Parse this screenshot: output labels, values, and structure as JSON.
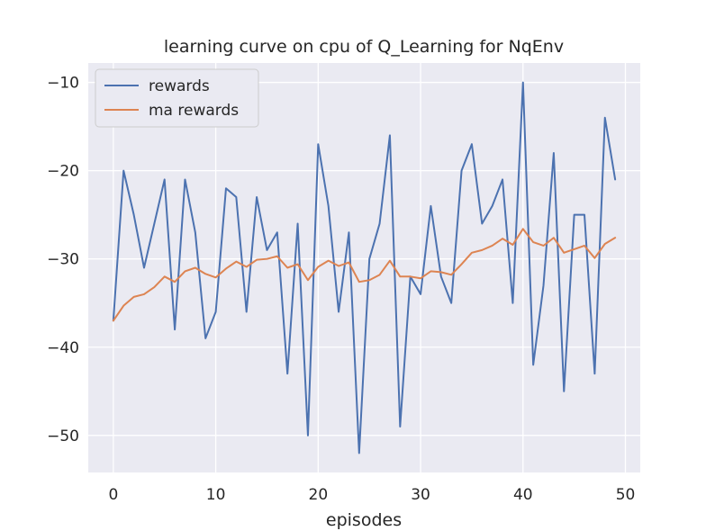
{
  "chart_data": {
    "type": "line",
    "title": "learning curve on cpu of Q_Learning for NqEnv",
    "xlabel": "episodes",
    "ylabel": "",
    "xlim": [
      -2.45,
      51.45
    ],
    "ylim": [
      -54.2,
      -7.8
    ],
    "x_ticks": [
      0,
      10,
      20,
      30,
      40,
      50
    ],
    "y_ticks": [
      -50,
      -40,
      -30,
      -20,
      -10
    ],
    "x_tick_labels": [
      "0",
      "10",
      "20",
      "30",
      "40",
      "50"
    ],
    "y_tick_labels": [
      "−50",
      "−40",
      "−30",
      "−20",
      "−10"
    ],
    "grid": true,
    "legend_position": "top-left",
    "x": [
      0,
      1,
      2,
      3,
      4,
      5,
      6,
      7,
      8,
      9,
      10,
      11,
      12,
      13,
      14,
      15,
      16,
      17,
      18,
      19,
      20,
      21,
      22,
      23,
      24,
      25,
      26,
      27,
      28,
      29,
      30,
      31,
      32,
      33,
      34,
      35,
      36,
      37,
      38,
      39,
      40,
      41,
      42,
      43,
      44,
      45,
      46,
      47,
      48,
      49
    ],
    "series": [
      {
        "name": "rewards",
        "color": "#4c72b0",
        "values": [
          -37,
          -20,
          -25,
          -31,
          -26,
          -21,
          -38,
          -21,
          -27,
          -39,
          -36,
          -22,
          -23,
          -36,
          -23,
          -29,
          -27,
          -43,
          -26,
          -50,
          -17,
          -24,
          -36,
          -27,
          -52,
          -30,
          -26,
          -16,
          -49,
          -32,
          -34,
          -24,
          -32,
          -35,
          -20,
          -17,
          -26,
          -24,
          -21,
          -35,
          -10,
          -42,
          -33,
          -18,
          -45,
          -25,
          -25,
          -43,
          -14,
          -21
        ]
      },
      {
        "name": "ma rewards",
        "color": "#dd8452",
        "values": [
          -37,
          -35.3,
          -34.3,
          -34,
          -33.2,
          -32,
          -32.6,
          -31.4,
          -31,
          -31.7,
          -32.1,
          -31.1,
          -30.3,
          -30.9,
          -30.1,
          -30,
          -29.7,
          -31,
          -30.6,
          -32.4,
          -30.9,
          -30.2,
          -30.8,
          -30.4,
          -32.6,
          -32.4,
          -31.8,
          -30.2,
          -32,
          -32,
          -32.2,
          -31.4,
          -31.5,
          -31.8,
          -30.6,
          -29.3,
          -29,
          -28.5,
          -27.7,
          -28.4,
          -26.6,
          -28.1,
          -28.5,
          -27.6,
          -29.3,
          -28.9,
          -28.5,
          -29.9,
          -28.3,
          -27.6
        ]
      }
    ]
  }
}
